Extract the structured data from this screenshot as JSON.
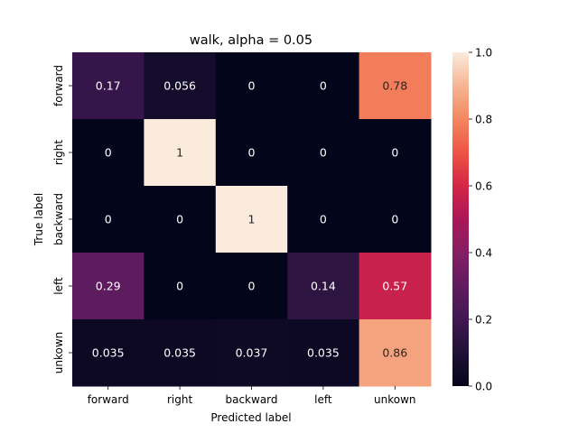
{
  "chart_data": {
    "type": "heatmap",
    "title": "walk, alpha = 0.05",
    "xlabel": "Predicted label",
    "ylabel": "True label",
    "x_categories": [
      "forward",
      "right",
      "backward",
      "left",
      "unkown"
    ],
    "y_categories": [
      "forward",
      "right",
      "backward",
      "left",
      "unkown"
    ],
    "values": [
      [
        0.17,
        0.056,
        0,
        0,
        0.78
      ],
      [
        0,
        1,
        0,
        0,
        0
      ],
      [
        0,
        0,
        1,
        0,
        0
      ],
      [
        0.29,
        0,
        0,
        0.14,
        0.57
      ],
      [
        0.035,
        0.035,
        0.037,
        0.035,
        0.86
      ]
    ],
    "value_labels": [
      [
        "0.17",
        "0.056",
        "0",
        "0",
        "0.78"
      ],
      [
        "0",
        "1",
        "0",
        "0",
        "0"
      ],
      [
        "0",
        "0",
        "1",
        "0",
        "0"
      ],
      [
        "0.29",
        "0",
        "0",
        "0.14",
        "0.57"
      ],
      [
        "0.035",
        "0.035",
        "0.037",
        "0.035",
        "0.86"
      ]
    ],
    "colorbar": {
      "range": [
        0,
        1
      ],
      "ticks": [
        0.0,
        0.2,
        0.4,
        0.6,
        0.8,
        1.0
      ],
      "tick_labels": [
        "0.0",
        "0.2",
        "0.4",
        "0.6",
        "0.8",
        "1.0"
      ]
    },
    "colormap": "rocket",
    "grid": false
  }
}
